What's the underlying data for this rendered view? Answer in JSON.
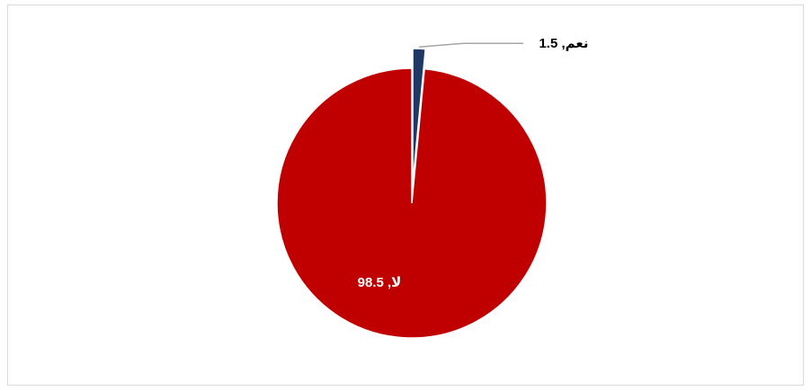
{
  "chart_data": {
    "type": "pie",
    "title": "",
    "slices": [
      {
        "category": "نعم",
        "value": 1.5,
        "label": "نعم, 1.5",
        "color": "#1f3864"
      },
      {
        "category": "لا",
        "value": 98.5,
        "label": "لا, 98.5",
        "color": "#c00000"
      }
    ],
    "legend": "none"
  }
}
